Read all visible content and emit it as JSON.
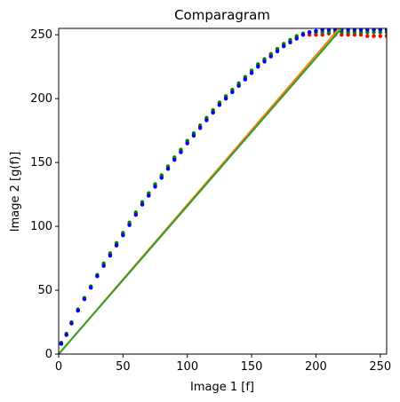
{
  "chart_data": {
    "type": "scatter",
    "title": "Comparagram",
    "xlabel": "Image 1 [f]",
    "ylabel": "Image 2 [g(f)]",
    "xlim": [
      0,
      255
    ],
    "ylim": [
      0,
      255
    ],
    "xticks": [
      0,
      50,
      100,
      150,
      200,
      250
    ],
    "yticks": [
      0,
      50,
      100,
      150,
      200,
      250
    ],
    "grid": false,
    "colors": {
      "red": "#ff0000",
      "green": "#008000",
      "blue": "#0000ff",
      "line_green": "#2ca02c",
      "line_orange": "#ff7f0e"
    },
    "series": [
      {
        "color": "red",
        "x": [
          2,
          6,
          10,
          15,
          20,
          25,
          30,
          35,
          40,
          45,
          50,
          55,
          60,
          65,
          70,
          75,
          80,
          85,
          90,
          95,
          100,
          105,
          110,
          115,
          120,
          125,
          130,
          135,
          140,
          145,
          150,
          155,
          160,
          165,
          170,
          175,
          180,
          185,
          190,
          195,
          200,
          205,
          210,
          215,
          220,
          225,
          230,
          235,
          240,
          245,
          250,
          255
        ],
        "y": [
          8,
          15,
          24,
          34,
          43,
          52,
          61,
          70,
          78,
          86,
          94,
          102,
          110,
          118,
          125,
          132,
          139,
          146,
          153,
          159,
          166,
          172,
          178,
          184,
          190,
          196,
          201,
          206,
          211,
          216,
          221,
          226,
          230,
          234,
          238,
          242,
          245,
          248,
          250,
          250,
          250,
          250,
          251,
          250,
          250,
          250,
          250,
          250,
          249,
          249,
          249,
          249
        ]
      },
      {
        "color": "green",
        "x": [
          2,
          6,
          10,
          15,
          20,
          25,
          30,
          35,
          40,
          45,
          50,
          55,
          60,
          65,
          70,
          75,
          80,
          85,
          90,
          95,
          100,
          105,
          110,
          115,
          120,
          125,
          130,
          135,
          140,
          145,
          150,
          155,
          160,
          165,
          170,
          175,
          180,
          185,
          190,
          195,
          200,
          205,
          210,
          215,
          220,
          225,
          230,
          235,
          240,
          245,
          250,
          255
        ],
        "y": [
          9,
          16,
          25,
          35,
          44,
          53,
          62,
          71,
          79,
          87,
          95,
          103,
          111,
          119,
          126,
          133,
          140,
          147,
          154,
          160,
          167,
          173,
          179,
          185,
          191,
          197,
          202,
          207,
          212,
          217,
          222,
          227,
          231,
          235,
          239,
          243,
          246,
          249,
          251,
          252,
          252,
          252,
          252,
          252,
          252,
          252,
          252,
          252,
          252,
          252,
          252,
          252
        ]
      },
      {
        "color": "blue",
        "x": [
          2,
          6,
          10,
          15,
          20,
          25,
          30,
          35,
          40,
          45,
          50,
          55,
          60,
          65,
          70,
          75,
          80,
          85,
          90,
          95,
          100,
          105,
          110,
          115,
          120,
          125,
          130,
          135,
          140,
          145,
          150,
          155,
          160,
          165,
          170,
          175,
          180,
          185,
          190,
          195,
          200,
          205,
          210,
          215,
          220,
          225,
          230,
          235,
          240,
          245,
          250,
          255
        ],
        "y": [
          8,
          15,
          24,
          34,
          43,
          52,
          61,
          69,
          77,
          85,
          93,
          101,
          109,
          117,
          124,
          131,
          138,
          145,
          152,
          158,
          165,
          171,
          177,
          183,
          189,
          195,
          200,
          205,
          210,
          215,
          220,
          225,
          229,
          233,
          237,
          241,
          244,
          247,
          250,
          252,
          253,
          254,
          254,
          254,
          254,
          254,
          254,
          254,
          254,
          254,
          254,
          254
        ]
      }
    ],
    "lines": [
      {
        "color": "line_orange",
        "x": [
          0,
          218
        ],
        "y": [
          0,
          255
        ]
      },
      {
        "color": "line_green",
        "x": [
          0,
          220
        ],
        "y": [
          0,
          255
        ]
      }
    ]
  }
}
